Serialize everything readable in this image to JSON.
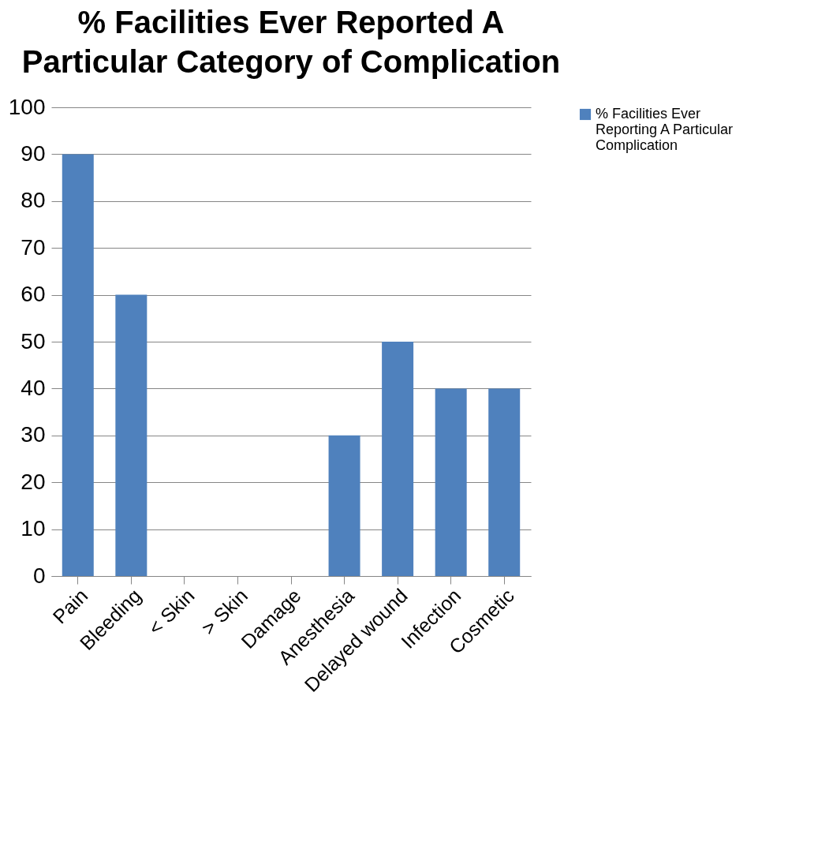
{
  "chart_data": {
    "type": "bar",
    "title": "% Facilities Ever Reported A  Particular Category of Complication",
    "categories": [
      "Pain",
      "Bleeding",
      "< Skin",
      "> Skin",
      "Damage",
      "Anesthesia",
      "Delayed wound",
      "Infection",
      "Cosmetic"
    ],
    "series": [
      {
        "name": "% Facilities Ever Reporting A Particular Complication",
        "color": "#4f81bd",
        "values": [
          90,
          60,
          0,
          0,
          0,
          30,
          50,
          40,
          40
        ]
      }
    ],
    "ylim": [
      0,
      100
    ],
    "yticks": [
      0,
      10,
      20,
      30,
      40,
      50,
      60,
      70,
      80,
      90,
      100
    ],
    "grid": "y",
    "legend": "right"
  }
}
